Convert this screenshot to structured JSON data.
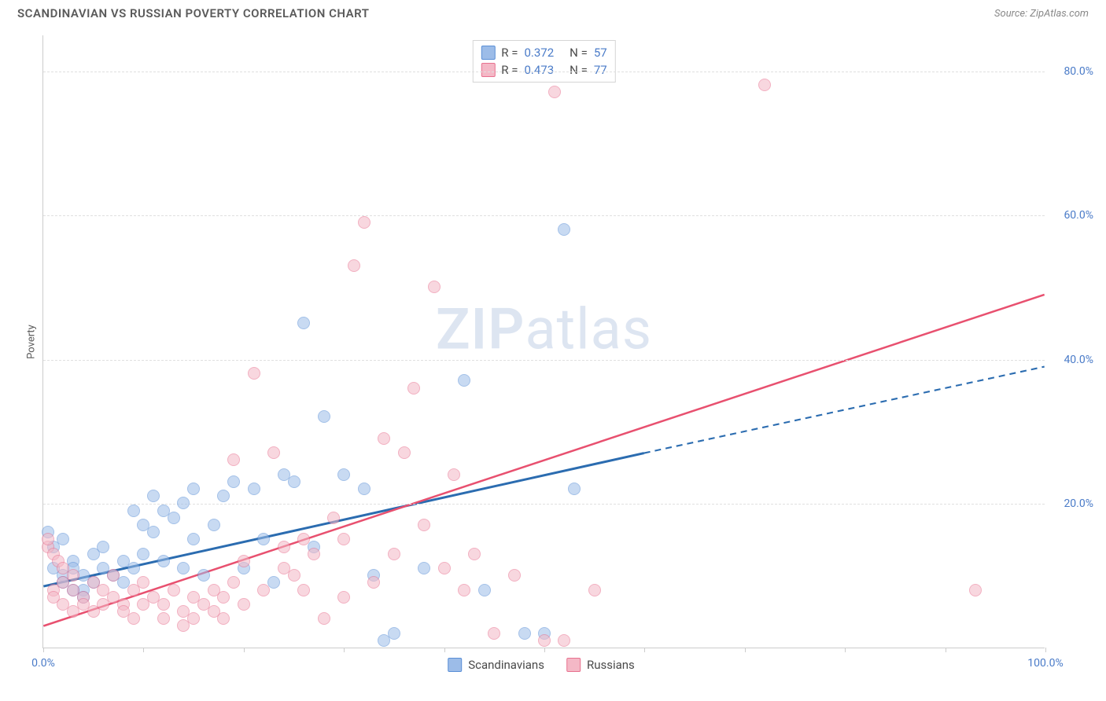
{
  "header": {
    "title": "SCANDINAVIAN VS RUSSIAN POVERTY CORRELATION CHART",
    "source": "Source: ZipAtlas.com"
  },
  "chart": {
    "type": "scatter",
    "ylabel": "Poverty",
    "xlim": [
      0,
      100
    ],
    "ylim": [
      0,
      85
    ],
    "x_ticks": [
      0,
      10,
      20,
      30,
      40,
      50,
      60,
      70,
      80,
      90,
      100
    ],
    "x_tick_labels": {
      "0": "0.0%",
      "100": "100.0%"
    },
    "y_ticks": [
      20,
      40,
      60,
      80
    ],
    "y_tick_labels": {
      "20": "20.0%",
      "40": "40.0%",
      "60": "60.0%",
      "80": "80.0%"
    },
    "grid_color": "#e0e0e0",
    "axis_color": "#cccccc",
    "background_color": "#ffffff",
    "tick_label_color": "#4a7bc8",
    "tick_label_fontsize": 14,
    "axis_label_color": "#5a5a5a",
    "axis_label_fontsize": 13,
    "point_radius": 8,
    "point_opacity": 0.55,
    "series": [
      {
        "name": "Scandinavians",
        "fill_color": "#9cbce8",
        "stroke_color": "#5a8fd6",
        "trend_color": "#2b6cb0",
        "trend_width": 3,
        "R": "0.372",
        "N": "57",
        "trend": {
          "x1": 0,
          "y1": 8.5,
          "x2": 60,
          "y2": 27,
          "dash_x2": 100,
          "dash_y2": 39
        },
        "points": [
          [
            1,
            11
          ],
          [
            2,
            10
          ],
          [
            2,
            9
          ],
          [
            3,
            12
          ],
          [
            3,
            11
          ],
          [
            4,
            10
          ],
          [
            4,
            8
          ],
          [
            5,
            9
          ],
          [
            5,
            13
          ],
          [
            6,
            11
          ],
          [
            6,
            14
          ],
          [
            7,
            10
          ],
          [
            8,
            9
          ],
          [
            8,
            12
          ],
          [
            9,
            11
          ],
          [
            9,
            19
          ],
          [
            10,
            13
          ],
          [
            10,
            17
          ],
          [
            11,
            21
          ],
          [
            11,
            16
          ],
          [
            12,
            19
          ],
          [
            12,
            12
          ],
          [
            13,
            18
          ],
          [
            14,
            11
          ],
          [
            14,
            20
          ],
          [
            15,
            22
          ],
          [
            15,
            15
          ],
          [
            16,
            10
          ],
          [
            17,
            17
          ],
          [
            18,
            21
          ],
          [
            19,
            23
          ],
          [
            20,
            11
          ],
          [
            21,
            22
          ],
          [
            22,
            15
          ],
          [
            23,
            9
          ],
          [
            24,
            24
          ],
          [
            25,
            23
          ],
          [
            26,
            45
          ],
          [
            27,
            14
          ],
          [
            28,
            32
          ],
          [
            30,
            24
          ],
          [
            32,
            22
          ],
          [
            33,
            10
          ],
          [
            34,
            1
          ],
          [
            35,
            2
          ],
          [
            38,
            11
          ],
          [
            42,
            37
          ],
          [
            44,
            8
          ],
          [
            48,
            2
          ],
          [
            50,
            2
          ],
          [
            52,
            58
          ],
          [
            53,
            22
          ],
          [
            0.5,
            16
          ],
          [
            1,
            14
          ],
          [
            2,
            15
          ],
          [
            3,
            8
          ],
          [
            4,
            7
          ]
        ]
      },
      {
        "name": "Russians",
        "fill_color": "#f4b8c6",
        "stroke_color": "#e8718f",
        "trend_color": "#e8506f",
        "trend_width": 2.5,
        "R": "0.473",
        "N": "77",
        "trend": {
          "x1": 0,
          "y1": 3,
          "x2": 100,
          "y2": 49
        },
        "points": [
          [
            1,
            8
          ],
          [
            1,
            7
          ],
          [
            2,
            6
          ],
          [
            2,
            9
          ],
          [
            3,
            5
          ],
          [
            3,
            8
          ],
          [
            4,
            7
          ],
          [
            4,
            6
          ],
          [
            5,
            5
          ],
          [
            5,
            9
          ],
          [
            6,
            8
          ],
          [
            6,
            6
          ],
          [
            7,
            7
          ],
          [
            7,
            10
          ],
          [
            8,
            6
          ],
          [
            8,
            5
          ],
          [
            9,
            4
          ],
          [
            9,
            8
          ],
          [
            10,
            6
          ],
          [
            10,
            9
          ],
          [
            11,
            7
          ],
          [
            12,
            6
          ],
          [
            12,
            4
          ],
          [
            13,
            8
          ],
          [
            14,
            3
          ],
          [
            14,
            5
          ],
          [
            15,
            7
          ],
          [
            15,
            4
          ],
          [
            16,
            6
          ],
          [
            17,
            5
          ],
          [
            17,
            8
          ],
          [
            18,
            4
          ],
          [
            19,
            26
          ],
          [
            20,
            12
          ],
          [
            20,
            6
          ],
          [
            21,
            38
          ],
          [
            22,
            8
          ],
          [
            23,
            27
          ],
          [
            24,
            14
          ],
          [
            25,
            10
          ],
          [
            26,
            8
          ],
          [
            27,
            13
          ],
          [
            28,
            4
          ],
          [
            29,
            18
          ],
          [
            30,
            15
          ],
          [
            31,
            53
          ],
          [
            32,
            59
          ],
          [
            33,
            9
          ],
          [
            34,
            29
          ],
          [
            35,
            13
          ],
          [
            36,
            27
          ],
          [
            37,
            36
          ],
          [
            38,
            17
          ],
          [
            39,
            50
          ],
          [
            40,
            11
          ],
          [
            41,
            24
          ],
          [
            42,
            8
          ],
          [
            43,
            13
          ],
          [
            45,
            2
          ],
          [
            47,
            10
          ],
          [
            50,
            1
          ],
          [
            51,
            77
          ],
          [
            52,
            1
          ],
          [
            55,
            8
          ],
          [
            72,
            78
          ],
          [
            93,
            8
          ],
          [
            0.5,
            14
          ],
          [
            0.5,
            15
          ],
          [
            1,
            13
          ],
          [
            1.5,
            12
          ],
          [
            2,
            11
          ],
          [
            3,
            10
          ],
          [
            18,
            7
          ],
          [
            19,
            9
          ],
          [
            24,
            11
          ],
          [
            26,
            15
          ],
          [
            30,
            7
          ]
        ]
      }
    ],
    "legend": {
      "items": [
        {
          "label": "Scandinavians",
          "fill": "#9cbce8",
          "stroke": "#5a8fd6"
        },
        {
          "label": "Russians",
          "fill": "#f4b8c6",
          "stroke": "#e8718f"
        }
      ]
    },
    "watermark": {
      "bold": "ZIP",
      "rest": "atlas"
    }
  }
}
